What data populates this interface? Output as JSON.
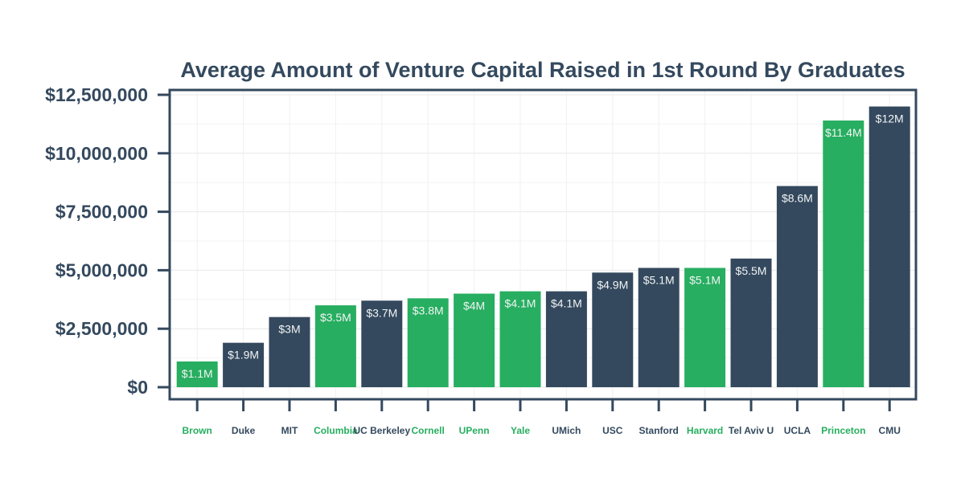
{
  "chart_data": {
    "type": "bar",
    "title": "Average Amount of Venture Capital Raised in 1st Round By Graduates",
    "xlabel": "",
    "ylabel": "",
    "ylim": [
      0,
      12500000
    ],
    "y_ticks": [
      0,
      2500000,
      5000000,
      7500000,
      10000000,
      12500000
    ],
    "y_tick_labels": [
      "$0",
      "$2,500,000",
      "$5,000,000",
      "$7,500,000",
      "$10,000,000",
      "$12,500,000"
    ],
    "grid": true,
    "legend": "none",
    "categories": [
      "Brown",
      "Duke",
      "MIT",
      "Columbia",
      "UC Berkeley",
      "Cornell",
      "UPenn",
      "Yale",
      "UMich",
      "USC",
      "Stanford",
      "Harvard",
      "Tel Aviv U",
      "UCLA",
      "Princeton",
      "CMU"
    ],
    "values": [
      1100000,
      1900000,
      3000000,
      3500000,
      3700000,
      3800000,
      4000000,
      4100000,
      4100000,
      4900000,
      5100000,
      5100000,
      5500000,
      8600000,
      11400000,
      12000000
    ],
    "value_labels": [
      "$1.1M",
      "$1.9M",
      "$3M",
      "$3.5M",
      "$3.7M",
      "$3.8M",
      "$4M",
      "$4.1M",
      "$4.1M",
      "$4.9M",
      "$5.1M",
      "$5.1M",
      "$5.5M",
      "$8.6M",
      "$11.4M",
      "$12M"
    ],
    "highlighted": [
      true,
      false,
      false,
      true,
      false,
      true,
      true,
      true,
      false,
      false,
      false,
      true,
      false,
      false,
      true,
      false
    ],
    "colors": {
      "highlight": "#27ae60",
      "default": "#34495e",
      "value_label": "#f2f4f5",
      "axis": "#34495e",
      "grid": "#e8e8e8"
    }
  }
}
